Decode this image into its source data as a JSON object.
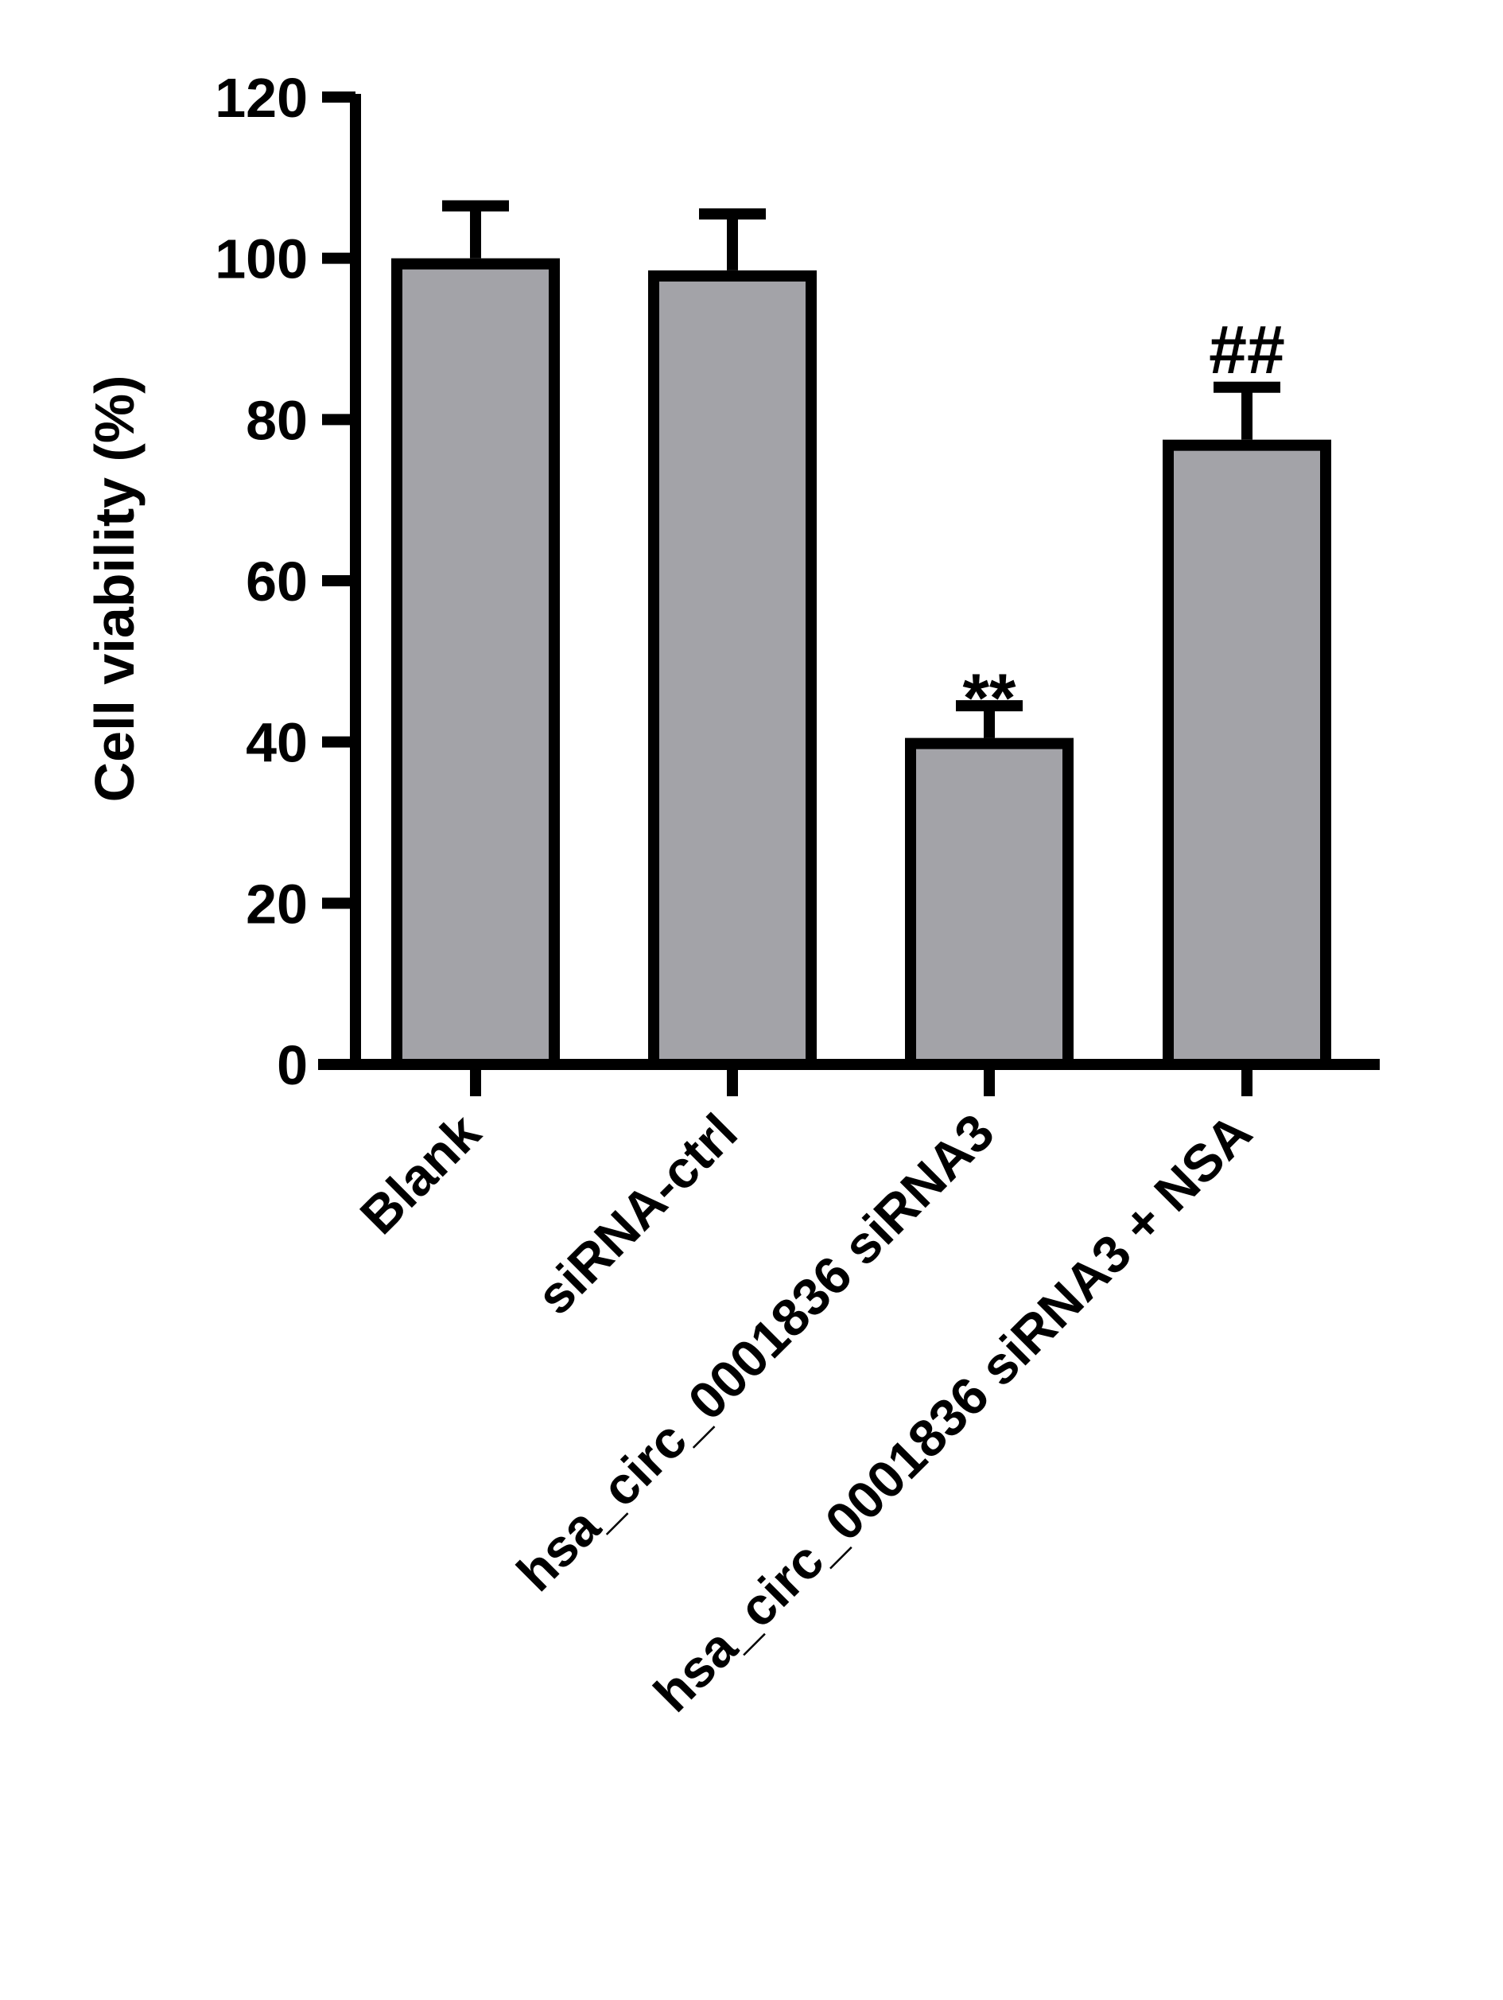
{
  "chart_data": {
    "type": "bar",
    "title": "",
    "xlabel": "",
    "ylabel": "Cell viability (%)",
    "ylim": [
      0,
      120
    ],
    "yticks": [
      0,
      20,
      40,
      60,
      80,
      100,
      120
    ],
    "ytick_labels": [
      "0",
      "20",
      "40",
      "60",
      "80",
      "100",
      "120"
    ],
    "categories": [
      "Blank",
      "siRNA-ctrl",
      "hsa_circ_0001836 siRNA3",
      "hsa_circ_0001836 siRNA3 + NSA"
    ],
    "values": [
      100,
      98.5,
      40.5,
      77.5
    ],
    "errors": [
      6.5,
      7,
      4,
      6.5
    ],
    "annotations": [
      "",
      "",
      "**",
      "##"
    ],
    "bar_fill": "#a3a3a8",
    "bar_edge": "#000000",
    "grid": false,
    "legend": "none"
  }
}
